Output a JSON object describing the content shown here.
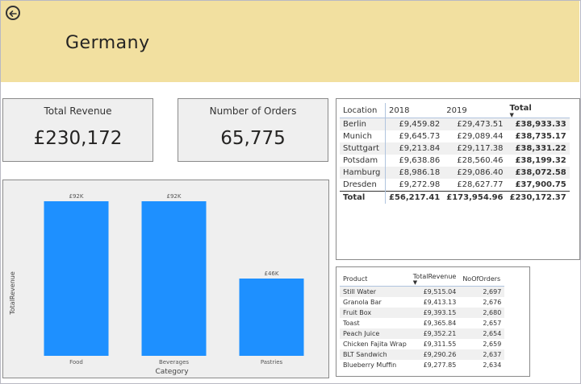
{
  "header": {
    "title": "Germany",
    "back_icon": "arrow-left-circle-icon"
  },
  "cards": {
    "revenue": {
      "label": "Total Revenue",
      "value": "£230,172"
    },
    "orders": {
      "label": "Number of Orders",
      "value": "65,775"
    }
  },
  "location_table": {
    "headers": [
      "Location",
      "2018",
      "2019",
      "Total"
    ],
    "rows": [
      {
        "location": "Berlin",
        "y2018": "£9,459.82",
        "y2019": "£29,473.51",
        "total": "£38,933.33"
      },
      {
        "location": "Munich",
        "y2018": "£9,645.73",
        "y2019": "£29,089.44",
        "total": "£38,735.17"
      },
      {
        "location": "Stuttgart",
        "y2018": "£9,213.84",
        "y2019": "£29,117.38",
        "total": "£38,331.22"
      },
      {
        "location": "Potsdam",
        "y2018": "£9,638.86",
        "y2019": "£28,560.46",
        "total": "£38,199.32"
      },
      {
        "location": "Hamburg",
        "y2018": "£8,986.18",
        "y2019": "£29,086.40",
        "total": "£38,072.58"
      },
      {
        "location": "Dresden",
        "y2018": "£9,272.98",
        "y2019": "£28,627.77",
        "total": "£37,900.75"
      }
    ],
    "total_row": {
      "location": "Total",
      "y2018": "£56,217.41",
      "y2019": "£173,954.96",
      "total": "£230,172.37"
    }
  },
  "product_table": {
    "headers": [
      "Product",
      "TotalRevenue",
      "NoOfOrders"
    ],
    "rows": [
      {
        "product": "Still Water",
        "revenue": "£9,515.04",
        "orders": "2,697"
      },
      {
        "product": "Granola Bar",
        "revenue": "£9,413.13",
        "orders": "2,676"
      },
      {
        "product": "Fruit Box",
        "revenue": "£9,393.15",
        "orders": "2,680"
      },
      {
        "product": "Toast",
        "revenue": "£9,365.84",
        "orders": "2,657"
      },
      {
        "product": "Peach Juice",
        "revenue": "£9,352.21",
        "orders": "2,654"
      },
      {
        "product": "Chicken Fajita Wrap",
        "revenue": "£9,311.55",
        "orders": "2,659"
      },
      {
        "product": "BLT Sandwich",
        "revenue": "£9,290.26",
        "orders": "2,637"
      },
      {
        "product": "Blueberry Muffin",
        "revenue": "£9,277.85",
        "orders": "2,634"
      }
    ]
  },
  "chart_data": {
    "type": "bar",
    "categories": [
      "Food",
      "Beverages",
      "Pastries"
    ],
    "values": [
      92,
      92,
      46
    ],
    "data_labels": [
      "£92K",
      "£92K",
      "£46K"
    ],
    "xlabel": "Category",
    "ylabel": "TotalRevenue",
    "ylim": [
      0,
      92
    ],
    "bar_color": "#1e90ff"
  }
}
